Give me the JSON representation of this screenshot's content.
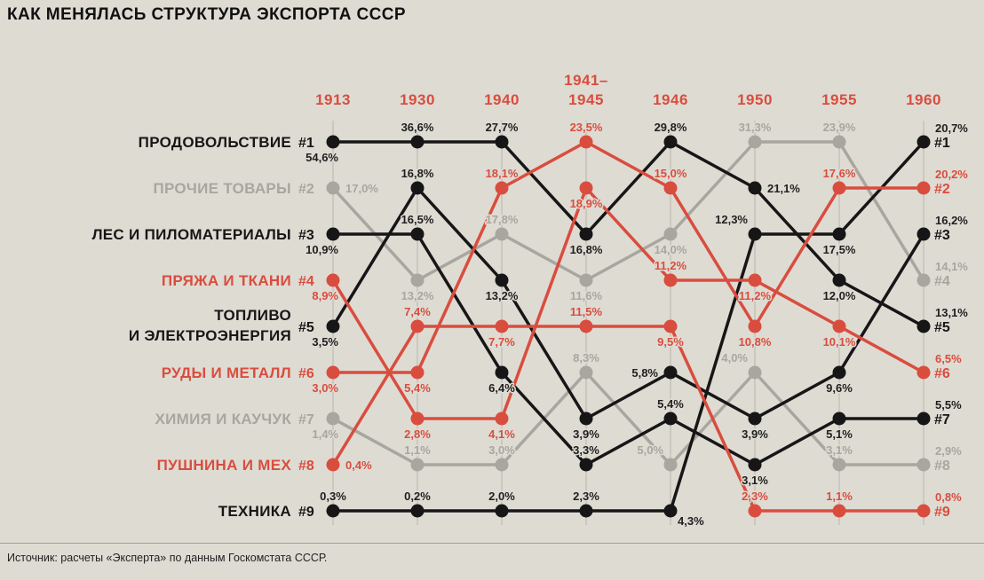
{
  "title": "КАК МЕНЯЛАСЬ СТРУКТУРА ЭКСПОРТА СССР",
  "source": "Источник: расчеты «Эксперта» по данным Госкомстата СССР.",
  "colors": {
    "background": "#dedbd3",
    "black": "#161616",
    "gray": "#a8a69f",
    "red": "#d94d3e",
    "grid": "#b9b6ad",
    "label_dark": "#1f1f1f",
    "divider": "#a39f95",
    "title_text": "#111111",
    "source_text": "#222222"
  },
  "chart_data": {
    "type": "line",
    "subtype": "bump-rank-chart",
    "unit": "% of total exports",
    "rank_axis": "rank 1 (top) to rank 9 (bottom)",
    "grid": "vertical guide line per year column",
    "x": [
      "1913",
      "1930",
      "1940",
      "1941–1945",
      "1946",
      "1950",
      "1955",
      "1960"
    ],
    "series": [
      {
        "id": "food",
        "name": "ПРОДОВОЛЬСТВИЕ",
        "color": "black",
        "values": [
          54.6,
          36.6,
          27.7,
          16.8,
          29.8,
          21.1,
          12.0,
          13.1
        ],
        "ranks": [
          1,
          1,
          1,
          3,
          1,
          2,
          4,
          5
        ],
        "label_pos": [
          "bl",
          "a",
          "a",
          "b",
          "a",
          "r",
          "b",
          "ar"
        ]
      },
      {
        "id": "other-goods",
        "name": "ПРОЧИЕ ТОВАРЫ",
        "color": "gray",
        "values": [
          17.0,
          13.2,
          17.8,
          11.6,
          14.0,
          31.3,
          23.9,
          14.1
        ],
        "ranks": [
          2,
          4,
          3,
          4,
          3,
          1,
          1,
          4
        ],
        "label_pos": [
          "r",
          "b",
          "a",
          "b",
          "b",
          "a",
          "a",
          "ar"
        ]
      },
      {
        "id": "timber",
        "name": "ЛЕС И ПИЛОМАТЕРИАЛЫ",
        "color": "black",
        "values": [
          10.9,
          16.5,
          6.4,
          3.3,
          5.4,
          3.1,
          5.1,
          5.5
        ],
        "ranks": [
          3,
          3,
          6,
          8,
          7,
          8,
          7,
          7
        ],
        "label_pos": [
          "bl",
          "a",
          "b",
          "a",
          "a",
          "b",
          "b",
          "ar"
        ]
      },
      {
        "id": "yarn-textiles",
        "name": "ПРЯЖА И ТКАНИ",
        "color": "red",
        "values": [
          8.9,
          2.8,
          4.1,
          18.9,
          11.2,
          11.2,
          10.1,
          6.5
        ],
        "ranks": [
          4,
          7,
          7,
          2,
          4,
          4,
          5,
          6
        ],
        "label_pos": [
          "bl",
          "b",
          "b",
          "b",
          "a",
          "b",
          "b",
          "ar"
        ]
      },
      {
        "id": "fuel-energy",
        "name": "ТОПЛИВО\nИ ЭЛЕКТРОЭНЕРГИЯ",
        "color": "black",
        "values": [
          3.5,
          16.8,
          13.2,
          3.9,
          5.8,
          3.9,
          9.6,
          16.2
        ],
        "ranks": [
          5,
          2,
          4,
          7,
          6,
          7,
          6,
          3
        ],
        "label_pos": [
          "bl",
          "a",
          "b",
          "b",
          "l",
          "b",
          "b",
          "ar"
        ]
      },
      {
        "id": "ores-metals",
        "name": "РУДЫ И МЕТАЛЛ",
        "color": "red",
        "values": [
          3.0,
          5.4,
          18.1,
          23.5,
          15.0,
          10.8,
          17.6,
          20.2
        ],
        "ranks": [
          6,
          6,
          2,
          1,
          2,
          5,
          2,
          2
        ],
        "label_pos": [
          "bl",
          "b",
          "a",
          "a",
          "a",
          "b",
          "a",
          "ar"
        ]
      },
      {
        "id": "chemicals-rubber",
        "name": "ХИМИЯ И КАУЧУК",
        "color": "gray",
        "values": [
          1.4,
          1.1,
          3.0,
          8.3,
          5.0,
          4.0,
          3.1,
          2.9
        ],
        "ranks": [
          7,
          8,
          8,
          6,
          8,
          6,
          8,
          8
        ],
        "label_pos": [
          "bl",
          "a",
          "a",
          "a",
          "al",
          "al",
          "a",
          "ar"
        ]
      },
      {
        "id": "furs",
        "name": "ПУШНИНА И МЕХ",
        "color": "red",
        "values": [
          0.4,
          7.4,
          7.7,
          11.5,
          9.5,
          2.3,
          1.1,
          0.8
        ],
        "ranks": [
          8,
          5,
          5,
          5,
          5,
          9,
          9,
          9
        ],
        "label_pos": [
          "r",
          "a",
          "b",
          "a",
          "b",
          "a",
          "a",
          "ar"
        ]
      },
      {
        "id": "machinery",
        "name": "ТЕХНИКА",
        "color": "black",
        "values": [
          0.3,
          0.2,
          2.0,
          2.3,
          4.3,
          12.3,
          17.5,
          20.7
        ],
        "ranks": [
          9,
          9,
          9,
          9,
          9,
          3,
          3,
          1
        ],
        "label_pos": [
          "a",
          "a",
          "a",
          "a",
          "br",
          "al",
          "b",
          "ar"
        ]
      }
    ]
  }
}
